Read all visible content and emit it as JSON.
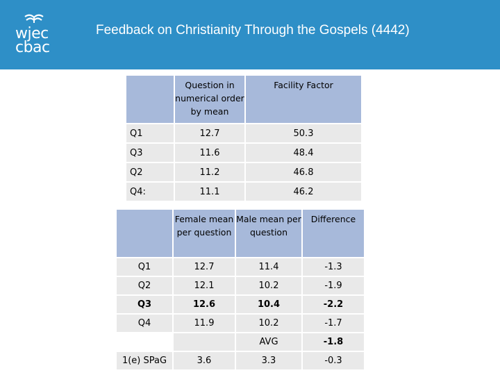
{
  "header": {
    "logo_line1": "wjec",
    "logo_line2": "cbac",
    "title": "Feedback on Christianity Through the Gospels (4442)"
  },
  "colors": {
    "header_bg": "#2e8fc7",
    "table_header": "#a7b9da",
    "cell_bg": "#e9e9e9"
  },
  "table1": {
    "headers": [
      "",
      "Question in numerical order by mean",
      "Facility Factor"
    ],
    "rows": [
      [
        "Q1",
        "12.7",
        "50.3"
      ],
      [
        "Q3",
        "11.6",
        "48.4"
      ],
      [
        "Q2",
        "11.2",
        "46.8"
      ],
      [
        "Q4:",
        "11.1",
        "46.2"
      ]
    ]
  },
  "table2": {
    "headers": [
      "",
      "Female mean per question",
      "Male mean per question",
      "Difference"
    ],
    "rows": [
      [
        "Q1",
        "12.7",
        "11.4",
        "-1.3"
      ],
      [
        "Q2",
        "12.1",
        "10.2",
        "-1.9"
      ],
      [
        "Q3",
        "12.6",
        "10.4",
        "-2.2"
      ],
      [
        "Q4",
        "11.9",
        "10.2",
        "-1.7"
      ],
      [
        "",
        "",
        "AVG",
        "-1.8"
      ],
      [
        "1(e) SPaG",
        "3.6",
        "3.3",
        "-0.3"
      ]
    ]
  }
}
